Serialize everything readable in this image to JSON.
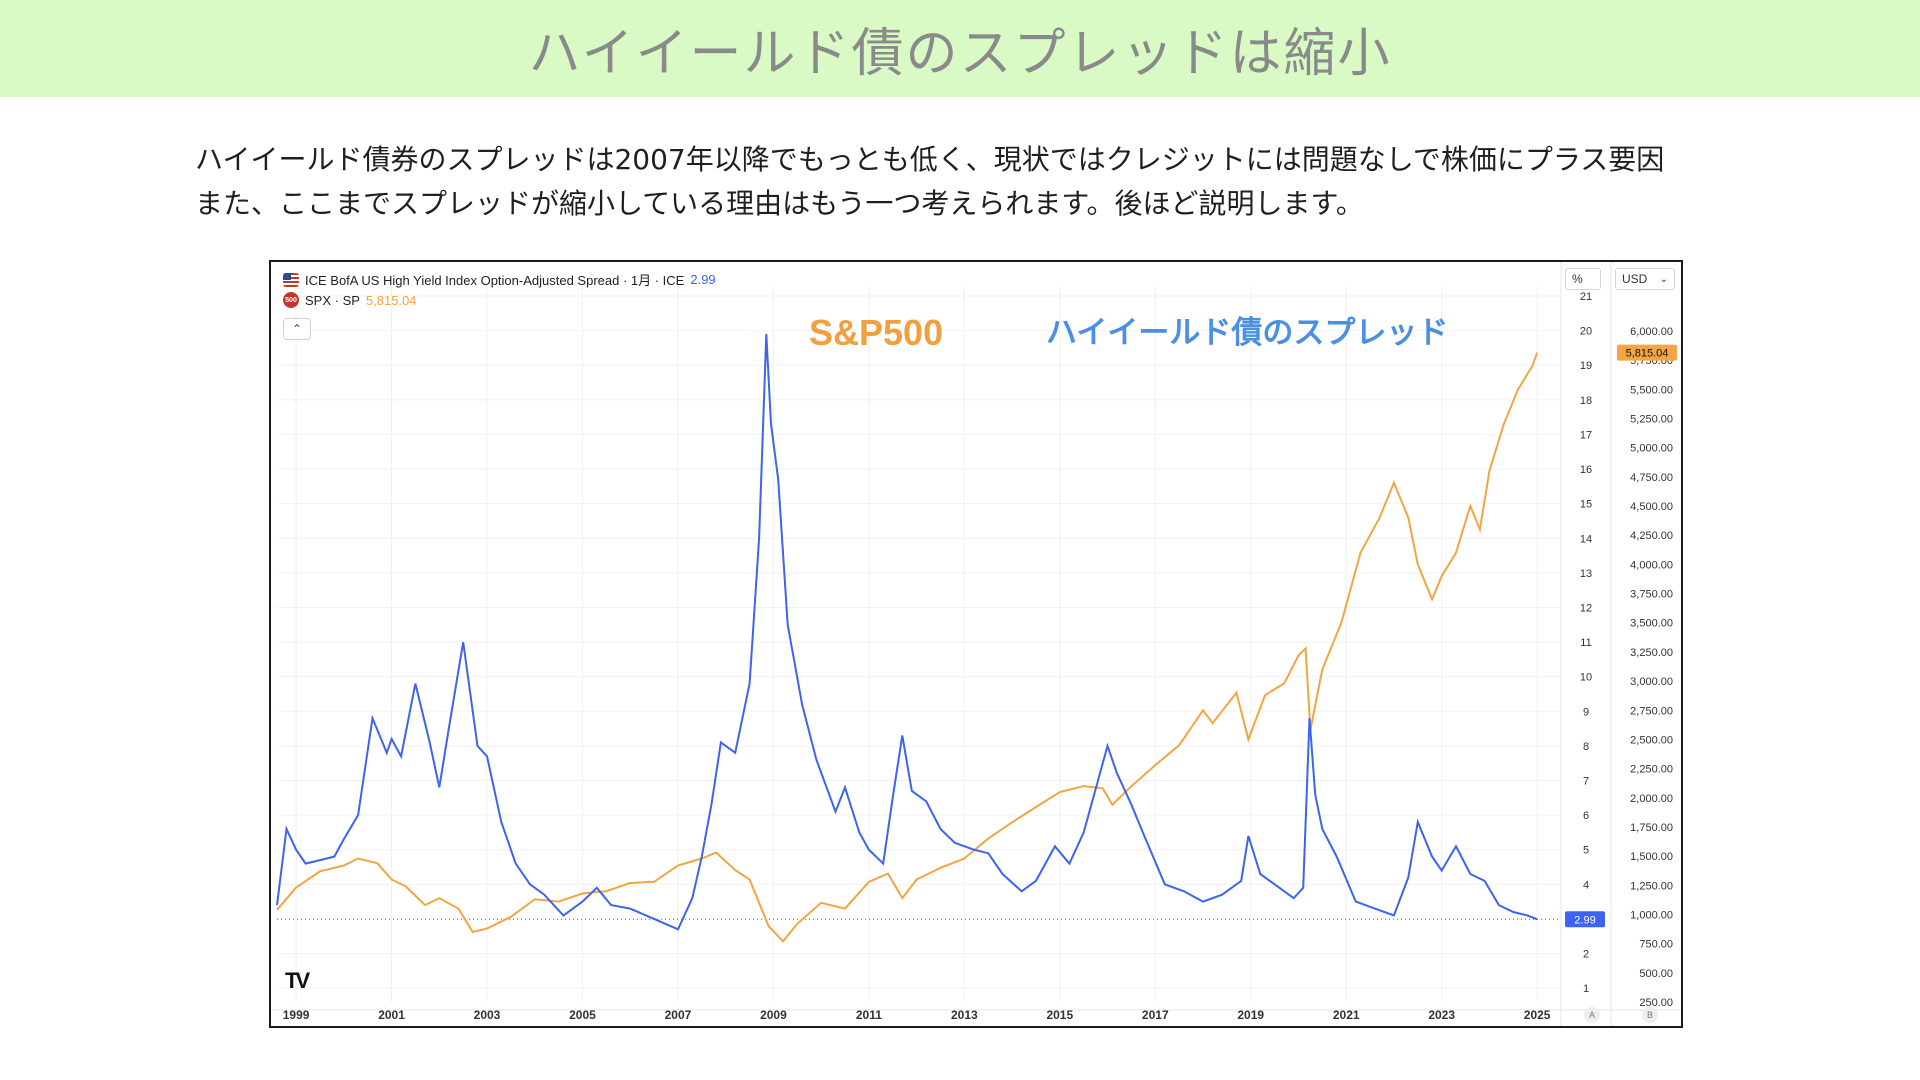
{
  "page": {
    "title": "ハイイールド債のスプレッドは縮小",
    "paragraph_line1": "ハイイールド債券のスプレッドは2007年以降でもっとも低く、現状ではクレジットには問題なしで株価にプラス要因",
    "paragraph_line2": "また、ここまでスプレッドが縮小している理由はもう一つ考えられます。後ほど説明します。"
  },
  "chart_header": {
    "series1_label": "ICE BofA US High Yield Index Option-Adjusted Spread · 1月 · ICE",
    "series1_value": "2.99",
    "series2_label": "SPX · SP",
    "series2_value": "5,815.04",
    "spx_badge": "500",
    "collapse_icon": "chevron-up-icon",
    "left_unit": "%",
    "right_unit": "USD",
    "right_unit_caret": "⌄",
    "logo": "TV",
    "corner_a": "A",
    "corner_b": "B"
  },
  "colors": {
    "spread": "#3d63f0",
    "spx": "#f2a541",
    "spread_annotation": "#4a90e2",
    "spx_annotation": "#f0a040",
    "title_bg": "#d9f9c5"
  },
  "chart_data": {
    "type": "line",
    "annotations": [
      "S&P500",
      "ハイイールド債のスプレッド"
    ],
    "x_ticks": [
      "1999",
      "2001",
      "2003",
      "2005",
      "2007",
      "2009",
      "2011",
      "2013",
      "2015",
      "2017",
      "2019",
      "2021",
      "2023",
      "2025"
    ],
    "x_range": [
      1998.6,
      2025.5
    ],
    "left_axis": {
      "unit": "%",
      "range": [
        0.6,
        21
      ],
      "ticks": [
        1,
        2,
        3,
        4,
        5,
        6,
        7,
        8,
        9,
        10,
        11,
        12,
        13,
        14,
        15,
        16,
        17,
        18,
        19,
        20,
        21
      ]
    },
    "right_axis": {
      "unit": "USD",
      "range": [
        250,
        6300
      ],
      "ticks": [
        "250.00",
        "500.00",
        "750.00",
        "1,000.00",
        "1,250.00",
        "1,500.00",
        "1,750.00",
        "2,000.00",
        "2,250.00",
        "2,500.00",
        "2,750.00",
        "3,000.00",
        "3,250.00",
        "3,500.00",
        "3,750.00",
        "4,000.00",
        "4,250.00",
        "4,500.00",
        "4,750.00",
        "5,000.00",
        "5,250.00",
        "5,500.00",
        "5,750.00",
        "6,000.00"
      ]
    },
    "last_values": {
      "spread": "2.99",
      "spx": "5,815.04"
    },
    "series": [
      {
        "name": "ICE BofA US High Yield Index Option-Adjusted Spread",
        "axis": "left",
        "x": [
          1998.6,
          1998.8,
          1999.0,
          1999.2,
          1999.5,
          1999.8,
          2000.0,
          2000.3,
          2000.6,
          2000.9,
          2001.0,
          2001.2,
          2001.5,
          2001.8,
          2002.0,
          2002.2,
          2002.5,
          2002.8,
          2003.0,
          2003.3,
          2003.6,
          2003.9,
          2004.2,
          2004.6,
          2005.0,
          2005.3,
          2005.6,
          2006.0,
          2006.5,
          2007.0,
          2007.3,
          2007.5,
          2007.7,
          2007.9,
          2008.2,
          2008.5,
          2008.7,
          2008.85,
          2008.95,
          2009.1,
          2009.3,
          2009.6,
          2009.9,
          2010.3,
          2010.5,
          2010.8,
          2011.0,
          2011.3,
          2011.5,
          2011.7,
          2011.9,
          2012.2,
          2012.5,
          2012.8,
          2013.2,
          2013.5,
          2013.8,
          2014.2,
          2014.5,
          2014.9,
          2015.2,
          2015.5,
          2015.8,
          2016.0,
          2016.2,
          2016.5,
          2016.8,
          2017.2,
          2017.6,
          2018.0,
          2018.4,
          2018.8,
          2018.95,
          2019.2,
          2019.5,
          2019.9,
          2020.1,
          2020.23,
          2020.35,
          2020.5,
          2020.8,
          2021.2,
          2021.6,
          2022.0,
          2022.3,
          2022.5,
          2022.8,
          2023.0,
          2023.3,
          2023.6,
          2023.9,
          2024.2,
          2024.5,
          2024.8,
          2025.0
        ],
        "values": [
          3.4,
          5.6,
          5.0,
          4.6,
          4.7,
          4.8,
          5.3,
          6.0,
          8.8,
          7.8,
          8.2,
          7.7,
          9.8,
          8.1,
          6.8,
          8.5,
          11.0,
          8.0,
          7.7,
          5.8,
          4.6,
          4.0,
          3.7,
          3.1,
          3.5,
          3.9,
          3.4,
          3.3,
          3.0,
          2.7,
          3.6,
          4.8,
          6.3,
          8.1,
          7.8,
          9.8,
          14.0,
          19.9,
          17.3,
          15.7,
          11.5,
          9.2,
          7.6,
          6.1,
          6.8,
          5.5,
          5.0,
          4.6,
          6.5,
          8.3,
          6.7,
          6.4,
          5.6,
          5.2,
          5.0,
          4.9,
          4.3,
          3.8,
          4.1,
          5.1,
          4.6,
          5.5,
          7.0,
          8.0,
          7.2,
          6.3,
          5.3,
          4.0,
          3.8,
          3.5,
          3.7,
          4.1,
          5.4,
          4.3,
          4.0,
          3.6,
          3.9,
          8.8,
          6.6,
          5.6,
          4.8,
          3.5,
          3.3,
          3.1,
          4.2,
          5.8,
          4.8,
          4.4,
          5.1,
          4.3,
          4.1,
          3.4,
          3.2,
          3.1,
          2.99
        ]
      },
      {
        "name": "SPX",
        "axis": "right",
        "x": [
          1998.6,
          1999.0,
          1999.5,
          2000.0,
          2000.3,
          2000.7,
          2001.0,
          2001.3,
          2001.7,
          2002.0,
          2002.4,
          2002.7,
          2003.0,
          2003.5,
          2004.0,
          2004.5,
          2005.0,
          2005.5,
          2006.0,
          2006.5,
          2007.0,
          2007.5,
          2007.8,
          2008.2,
          2008.5,
          2008.9,
          2009.2,
          2009.5,
          2010.0,
          2010.5,
          2011.0,
          2011.4,
          2011.7,
          2012.0,
          2012.5,
          2013.0,
          2013.5,
          2014.0,
          2014.5,
          2015.0,
          2015.5,
          2015.9,
          2016.1,
          2016.5,
          2017.0,
          2017.5,
          2018.0,
          2018.2,
          2018.7,
          2018.95,
          2019.3,
          2019.7,
          2020.0,
          2020.15,
          2020.25,
          2020.5,
          2020.9,
          2021.3,
          2021.7,
          2022.0,
          2022.3,
          2022.5,
          2022.8,
          2023.0,
          2023.3,
          2023.6,
          2023.8,
          2024.0,
          2024.3,
          2024.6,
          2024.9,
          2025.0
        ],
        "values": [
          1040,
          1230,
          1370,
          1420,
          1480,
          1440,
          1300,
          1240,
          1080,
          1140,
          1050,
          850,
          880,
          980,
          1130,
          1110,
          1180,
          1200,
          1270,
          1280,
          1420,
          1480,
          1530,
          1380,
          1300,
          900,
          770,
          920,
          1100,
          1050,
          1280,
          1350,
          1140,
          1300,
          1400,
          1480,
          1650,
          1790,
          1920,
          2050,
          2100,
          2080,
          1940,
          2100,
          2280,
          2450,
          2750,
          2640,
          2900,
          2500,
          2880,
          2980,
          3220,
          3280,
          2580,
          3100,
          3500,
          4100,
          4400,
          4700,
          4400,
          4000,
          3700,
          3900,
          4100,
          4500,
          4300,
          4800,
          5200,
          5500,
          5700,
          5815
        ]
      }
    ]
  }
}
